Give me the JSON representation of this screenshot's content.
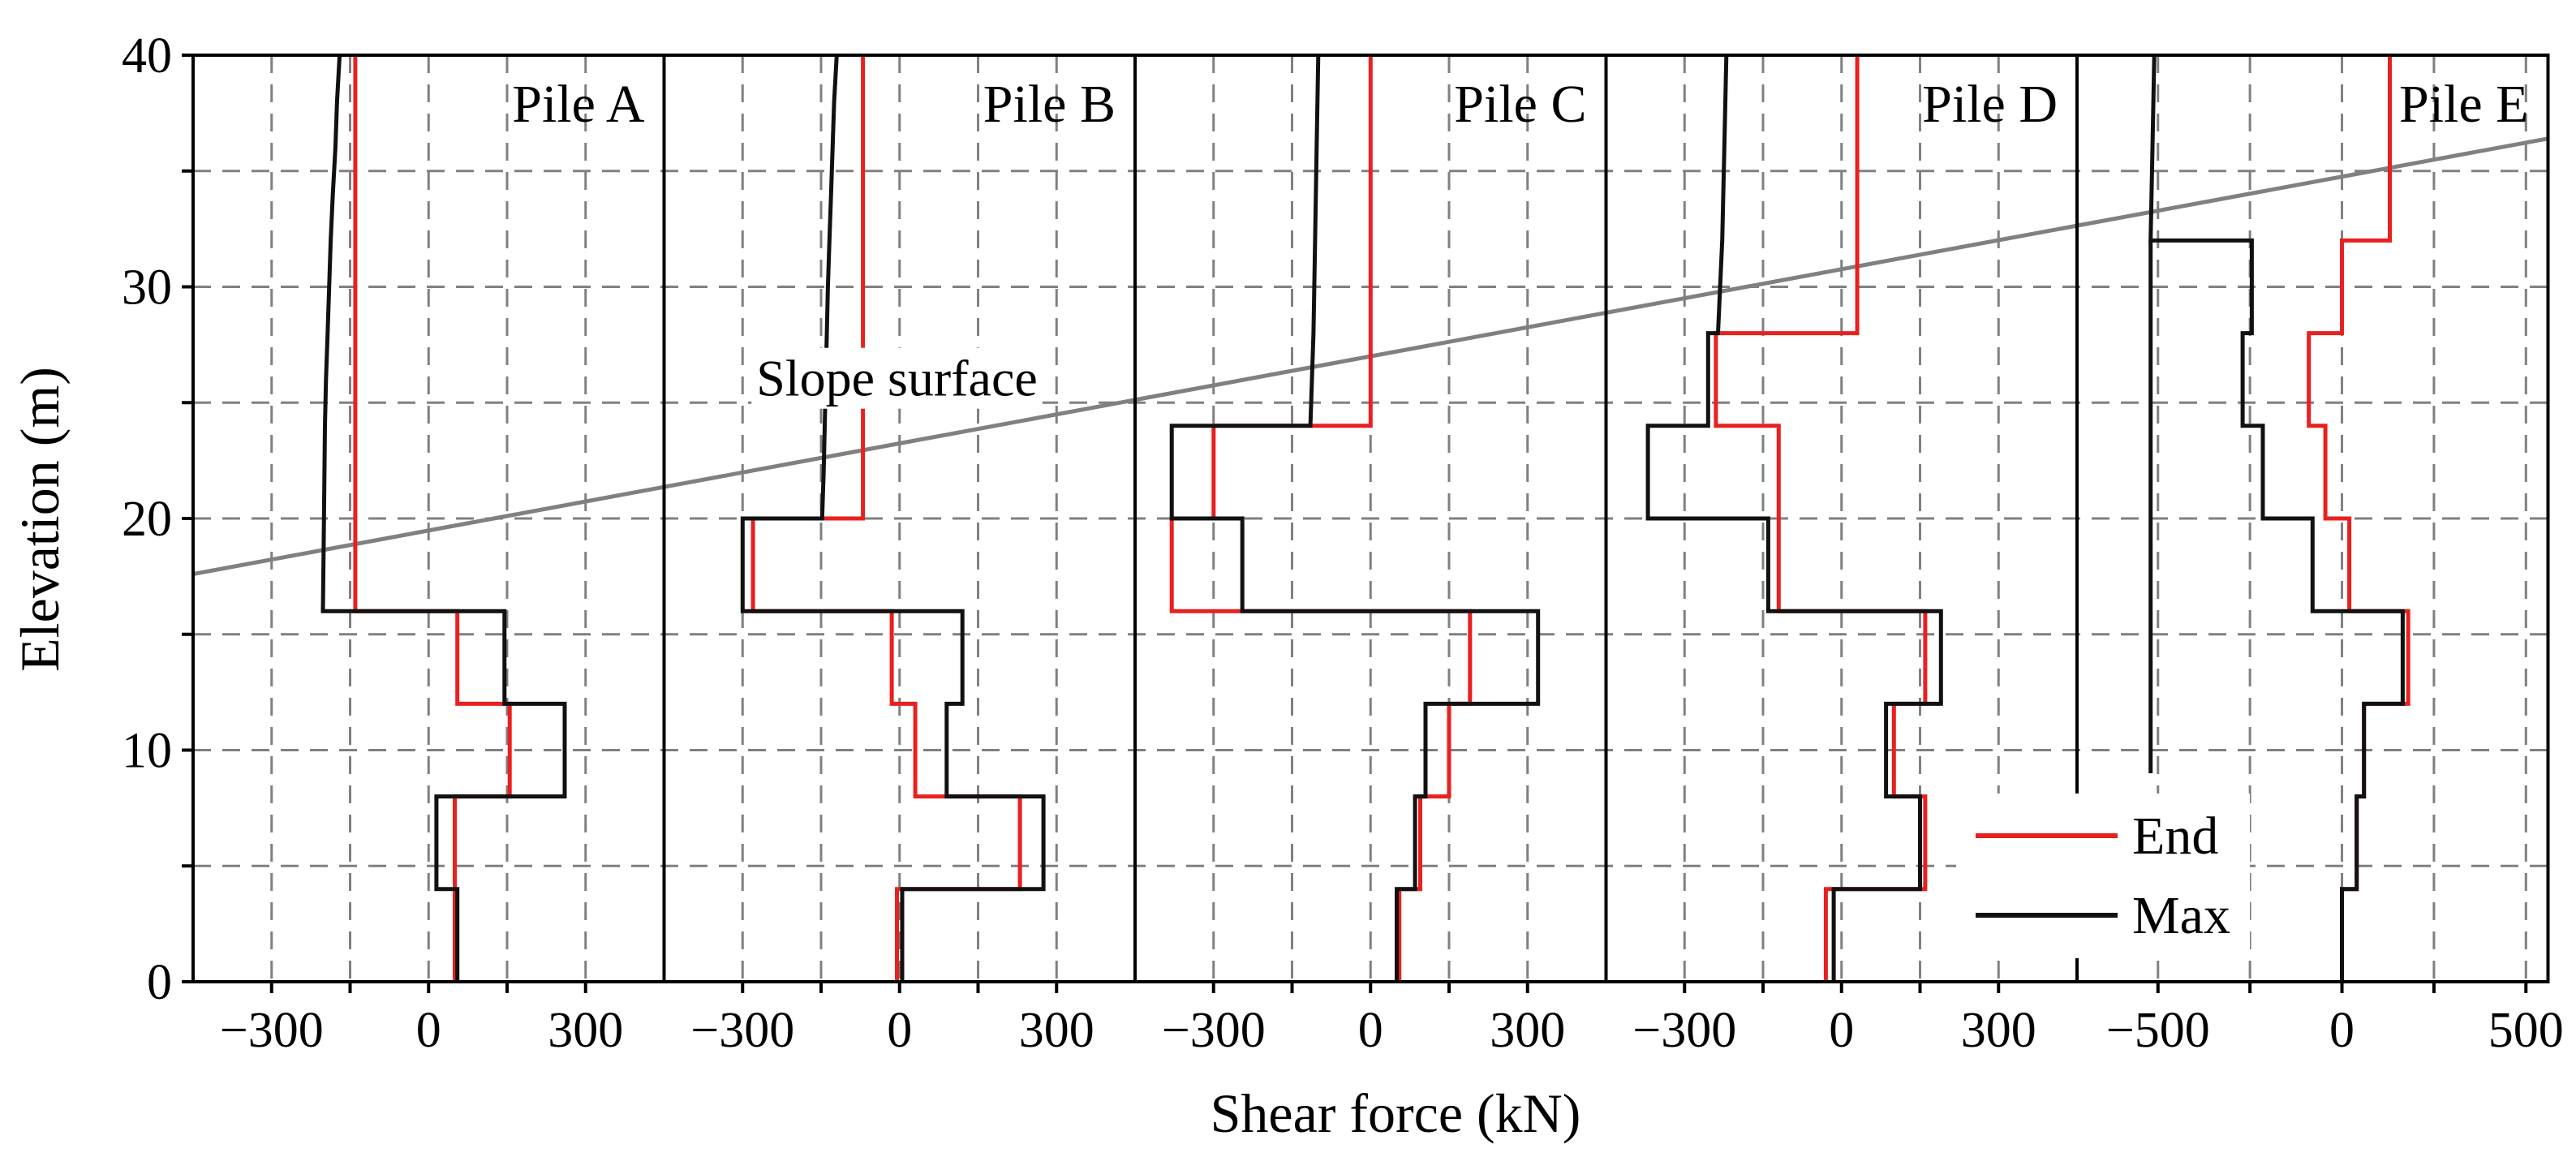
{
  "chart_data": {
    "type": "line",
    "xlabel": "Shear force (kN)",
    "ylabel": "Elevation (m)",
    "ylim": [
      0,
      40
    ],
    "yticks": [
      0,
      10,
      20,
      30,
      40
    ],
    "grid": true,
    "legend": {
      "placement": "lower-right",
      "entries": [
        "End",
        "Max"
      ]
    },
    "colors": {
      "End": "#e8211f",
      "Max": "#111111",
      "slope": "#808080",
      "grid": "#808080"
    },
    "annotation": {
      "text": "Slope surface",
      "x_panel": "Pile B",
      "x": -5,
      "y": 25.3
    },
    "slope_surface": {
      "points": [
        [
          "Pile A",
          -450,
          17.6
        ],
        [
          "Pile E",
          560,
          36.4
        ]
      ]
    },
    "panels": [
      {
        "title": "Pile A",
        "xlim": [
          -450,
          450
        ],
        "xticks": [
          -300,
          0,
          300
        ],
        "xtick_labels": [
          "−300",
          "0",
          "300"
        ],
        "series": [
          {
            "name": "End",
            "points": [
              [
                -140,
                40
              ],
              [
                -140,
                16
              ],
              [
                55,
                16
              ],
              [
                55,
                12
              ],
              [
                155,
                12
              ],
              [
                155,
                8
              ],
              [
                50,
                8
              ],
              [
                50,
                4
              ],
              [
                50,
                0
              ]
            ]
          },
          {
            "name": "Max",
            "points": [
              [
                -170,
                40
              ],
              [
                -175,
                38
              ],
              [
                -178,
                36
              ],
              [
                -183,
                34
              ],
              [
                -187,
                32
              ],
              [
                -190,
                30
              ],
              [
                -193,
                28
              ],
              [
                -196,
                26
              ],
              [
                -198,
                24
              ],
              [
                -200,
                20
              ],
              [
                -202,
                16
              ],
              [
                145,
                16
              ],
              [
                145,
                12
              ],
              [
                260,
                12
              ],
              [
                260,
                8
              ],
              [
                15,
                8
              ],
              [
                15,
                4
              ],
              [
                55,
                4
              ],
              [
                55,
                0
              ]
            ]
          }
        ]
      },
      {
        "title": "Pile B",
        "xlim": [
          -450,
          450
        ],
        "xticks": [
          -300,
          0,
          300
        ],
        "xtick_labels": [
          "−300",
          "0",
          "300"
        ],
        "series": [
          {
            "name": "End",
            "points": [
              [
                -70,
                40
              ],
              [
                -70,
                20
              ],
              [
                -280,
                20
              ],
              [
                -280,
                16
              ],
              [
                -15,
                16
              ],
              [
                -15,
                12
              ],
              [
                30,
                12
              ],
              [
                30,
                8
              ],
              [
                230,
                8
              ],
              [
                230,
                4
              ],
              [
                -5,
                4
              ],
              [
                -5,
                0
              ]
            ]
          },
          {
            "name": "Max",
            "points": [
              [
                -120,
                40
              ],
              [
                -125,
                38
              ],
              [
                -128,
                36
              ],
              [
                -131,
                34
              ],
              [
                -134,
                32
              ],
              [
                -137,
                30
              ],
              [
                -139,
                28
              ],
              [
                -141,
                26
              ],
              [
                -143,
                24
              ],
              [
                -145,
                22
              ],
              [
                -148,
                20
              ],
              [
                -300,
                20
              ],
              [
                -300,
                16
              ],
              [
                120,
                16
              ],
              [
                120,
                12
              ],
              [
                90,
                12
              ],
              [
                90,
                8
              ],
              [
                275,
                8
              ],
              [
                275,
                4
              ],
              [
                5,
                4
              ],
              [
                5,
                0
              ]
            ]
          }
        ]
      },
      {
        "title": "Pile C",
        "xlim": [
          -450,
          450
        ],
        "xticks": [
          -300,
          0,
          300
        ],
        "xtick_labels": [
          "−300",
          "0",
          "300"
        ],
        "series": [
          {
            "name": "End",
            "points": [
              [
                0,
                40
              ],
              [
                0,
                24
              ],
              [
                -300,
                24
              ],
              [
                -300,
                20
              ],
              [
                -380,
                20
              ],
              [
                -380,
                16
              ],
              [
                190,
                16
              ],
              [
                190,
                12
              ],
              [
                150,
                12
              ],
              [
                150,
                8
              ],
              [
                95,
                8
              ],
              [
                95,
                4
              ],
              [
                55,
                4
              ],
              [
                55,
                0
              ]
            ]
          },
          {
            "name": "Max",
            "points": [
              [
                -100,
                40
              ],
              [
                -103,
                36
              ],
              [
                -106,
                32
              ],
              [
                -109,
                28
              ],
              [
                -112,
                26
              ],
              [
                -115,
                24
              ],
              [
                -380,
                24
              ],
              [
                -380,
                20
              ],
              [
                -245,
                20
              ],
              [
                -245,
                16
              ],
              [
                320,
                16
              ],
              [
                320,
                12
              ],
              [
                105,
                12
              ],
              [
                105,
                8
              ],
              [
                85,
                8
              ],
              [
                85,
                4
              ],
              [
                50,
                4
              ],
              [
                50,
                0
              ]
            ]
          }
        ]
      },
      {
        "title": "Pile D",
        "xlim": [
          -450,
          450
        ],
        "xticks": [
          -300,
          0,
          300
        ],
        "xtick_labels": [
          "−300",
          "0",
          "300"
        ],
        "series": [
          {
            "name": "End",
            "points": [
              [
                30,
                40
              ],
              [
                30,
                28
              ],
              [
                -240,
                28
              ],
              [
                -240,
                24
              ],
              [
                -120,
                24
              ],
              [
                -120,
                16
              ],
              [
                160,
                16
              ],
              [
                160,
                12
              ],
              [
                100,
                12
              ],
              [
                100,
                8
              ],
              [
                160,
                8
              ],
              [
                160,
                4
              ],
              [
                -30,
                4
              ],
              [
                -30,
                0
              ]
            ]
          },
          {
            "name": "Max",
            "points": [
              [
                -220,
                40
              ],
              [
                -224,
                36
              ],
              [
                -228,
                32
              ],
              [
                -232,
                30
              ],
              [
                -236,
                28
              ],
              [
                -255,
                28
              ],
              [
                -255,
                24
              ],
              [
                -370,
                24
              ],
              [
                -370,
                20
              ],
              [
                -140,
                20
              ],
              [
                -140,
                16
              ],
              [
                190,
                16
              ],
              [
                190,
                12
              ],
              [
                85,
                12
              ],
              [
                85,
                8
              ],
              [
                150,
                8
              ],
              [
                150,
                4
              ],
              [
                -15,
                4
              ],
              [
                -15,
                0
              ]
            ]
          }
        ]
      },
      {
        "title": "Pile E",
        "xlim": [
          -720,
          560
        ],
        "xticks": [
          -500,
          0,
          500
        ],
        "xtick_labels": [
          "−500",
          "0",
          "500"
        ],
        "series": [
          {
            "name": "End",
            "points": [
              [
                130,
                40
              ],
              [
                130,
                32
              ],
              [
                0,
                32
              ],
              [
                0,
                28
              ],
              [
                -90,
                28
              ],
              [
                -90,
                24
              ],
              [
                -45,
                24
              ],
              [
                -45,
                20
              ],
              [
                20,
                20
              ],
              [
                20,
                16
              ],
              [
                180,
                16
              ],
              [
                180,
                12
              ],
              [
                60,
                12
              ],
              [
                60,
                8
              ],
              [
                40,
                8
              ],
              [
                40,
                4
              ],
              [
                0,
                4
              ],
              [
                0,
                0
              ]
            ]
          },
          {
            "name": "Max",
            "points": [
              [
                -510,
                40
              ],
              [
                -515,
                36
              ],
              [
                -520,
                32
              ],
              [
                -245,
                32
              ],
              [
                -245,
                28
              ],
              [
                -270,
                28
              ],
              [
                -270,
                24
              ],
              [
                -215,
                24
              ],
              [
                -215,
                20
              ],
              [
                -80,
                20
              ],
              [
                -80,
                16
              ],
              [
                165,
                16
              ],
              [
                165,
                12
              ],
              [
                60,
                12
              ],
              [
                60,
                8
              ],
              [
                40,
                8
              ],
              [
                40,
                4
              ],
              [
                0,
                4
              ],
              [
                0,
                0
              ]
            ]
          },
          {
            "name": "Max-left",
            "points": [
              [
                -520,
                32
              ],
              [
                -520,
                9
              ]
            ]
          }
        ]
      }
    ]
  }
}
